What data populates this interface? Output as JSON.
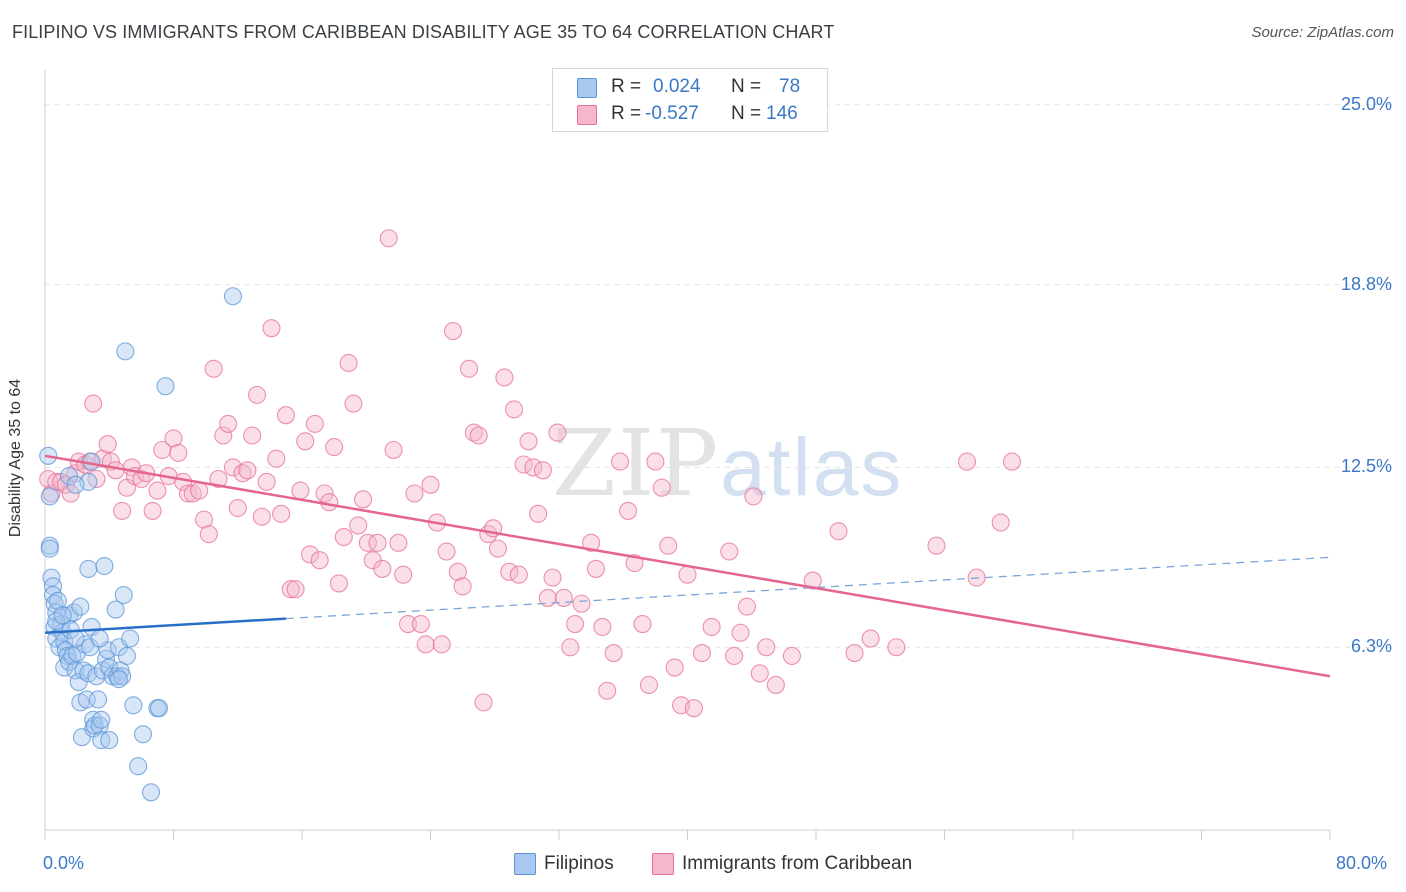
{
  "header": {
    "title": "FILIPINO VS IMMIGRANTS FROM CARIBBEAN DISABILITY AGE 35 TO 64 CORRELATION CHART",
    "source": "Source: ZipAtlas.com"
  },
  "watermark": {
    "zip": "ZIP",
    "atlas": "atlas"
  },
  "legend": {
    "rows": [
      {
        "r_label": "R =",
        "r_value": "0.024",
        "n_label": "N =",
        "n_value": "78",
        "color": "#a8c8f0"
      },
      {
        "r_label": "R =",
        "r_value": "-0.527",
        "n_label": "N =",
        "n_value": "146",
        "color": "#f5b8cb"
      }
    ]
  },
  "bottom_legend": {
    "items": [
      {
        "label": "Filipinos",
        "color": "#a8c8f0"
      },
      {
        "label": "Immigrants from Caribbean",
        "color": "#f5b8cb"
      }
    ]
  },
  "chart_data": {
    "type": "scatter",
    "title": "FILIPINO VS IMMIGRANTS FROM CARIBBEAN DISABILITY AGE 35 TO 64 CORRELATION CHART",
    "xlabel": "",
    "ylabel": "Disability Age 35 to 64",
    "xlim": [
      0,
      80
    ],
    "ylim": [
      0,
      26.2
    ],
    "x_tick_labels": [
      "0.0%",
      "80.0%"
    ],
    "y_ticks": [
      6.3,
      12.5,
      18.8,
      25.0
    ],
    "y_tick_labels": [
      "6.3%",
      "12.5%",
      "18.8%",
      "25.0%"
    ],
    "grid": true,
    "legend_position": "top-center",
    "series": [
      {
        "name": "Filipinos",
        "color": "#5b95d6",
        "fill": "#a8c8f0",
        "r": 0.024,
        "n": 78,
        "trend": {
          "x0": 0,
          "y0": 6.8,
          "x1": 80,
          "y1": 9.4,
          "solid_until": 15
        },
        "points": [
          [
            0.2,
            12.9
          ],
          [
            0.3,
            11.5
          ],
          [
            0.3,
            9.8
          ],
          [
            0.3,
            9.7
          ],
          [
            0.4,
            8.7
          ],
          [
            0.5,
            8.4
          ],
          [
            0.5,
            8.1
          ],
          [
            0.6,
            7.8
          ],
          [
            0.7,
            7.5
          ],
          [
            0.8,
            7.9
          ],
          [
            0.6,
            7.0
          ],
          [
            0.7,
            6.6
          ],
          [
            0.9,
            6.3
          ],
          [
            1.0,
            7.1
          ],
          [
            1.1,
            6.8
          ],
          [
            1.2,
            6.5
          ],
          [
            1.3,
            6.2
          ],
          [
            1.4,
            6.0
          ],
          [
            1.5,
            7.4
          ],
          [
            1.6,
            6.9
          ],
          [
            1.2,
            5.6
          ],
          [
            1.5,
            5.8
          ],
          [
            1.7,
            6.0
          ],
          [
            1.8,
            7.5
          ],
          [
            1.9,
            5.5
          ],
          [
            2.0,
            6.1
          ],
          [
            2.1,
            5.1
          ],
          [
            2.2,
            4.4
          ],
          [
            2.2,
            7.7
          ],
          [
            2.3,
            3.2
          ],
          [
            2.4,
            5.5
          ],
          [
            2.5,
            6.4
          ],
          [
            2.6,
            4.5
          ],
          [
            2.7,
            5.4
          ],
          [
            2.7,
            9.0
          ],
          [
            2.8,
            6.3
          ],
          [
            2.9,
            7.0
          ],
          [
            3.0,
            3.8
          ],
          [
            3.0,
            3.5
          ],
          [
            3.1,
            3.6
          ],
          [
            3.2,
            5.3
          ],
          [
            3.3,
            4.5
          ],
          [
            3.4,
            3.6
          ],
          [
            3.5,
            3.8
          ],
          [
            3.5,
            3.1
          ],
          [
            3.6,
            5.5
          ],
          [
            3.7,
            9.1
          ],
          [
            3.8,
            5.9
          ],
          [
            3.9,
            6.2
          ],
          [
            4.0,
            5.6
          ],
          [
            4.0,
            3.1
          ],
          [
            4.2,
            5.3
          ],
          [
            4.4,
            7.6
          ],
          [
            4.5,
            5.3
          ],
          [
            4.6,
            6.3
          ],
          [
            4.7,
            5.5
          ],
          [
            4.8,
            5.3
          ],
          [
            4.9,
            8.1
          ],
          [
            5.0,
            16.5
          ],
          [
            5.1,
            6.0
          ],
          [
            5.3,
            6.6
          ],
          [
            5.5,
            4.3
          ],
          [
            5.8,
            2.2
          ],
          [
            6.1,
            3.3
          ],
          [
            6.6,
            1.3
          ],
          [
            7.0,
            4.2
          ],
          [
            7.1,
            4.2
          ],
          [
            7.5,
            15.3
          ],
          [
            11.7,
            18.4
          ],
          [
            1.5,
            12.2
          ],
          [
            2.7,
            12.0
          ],
          [
            2.9,
            12.7
          ],
          [
            1.9,
            11.9
          ],
          [
            0.7,
            7.2
          ],
          [
            1.1,
            7.4
          ],
          [
            1.9,
            6.6
          ],
          [
            3.4,
            6.6
          ],
          [
            4.6,
            5.2
          ]
        ]
      },
      {
        "name": "Immigrants from Caribbean",
        "color": "#e86f98",
        "fill": "#f5b8cb",
        "r": -0.527,
        "n": 146,
        "trend": {
          "x0": 0,
          "y0": 12.9,
          "x1": 80,
          "y1": 5.3
        },
        "points": [
          [
            0.2,
            12.1
          ],
          [
            0.4,
            11.6
          ],
          [
            0.7,
            12.0
          ],
          [
            1.0,
            12.0
          ],
          [
            1.3,
            11.9
          ],
          [
            1.6,
            11.6
          ],
          [
            1.9,
            12.3
          ],
          [
            2.1,
            12.7
          ],
          [
            2.5,
            12.6
          ],
          [
            2.8,
            12.7
          ],
          [
            3.0,
            14.7
          ],
          [
            3.2,
            12.1
          ],
          [
            3.6,
            12.8
          ],
          [
            3.9,
            13.3
          ],
          [
            4.1,
            12.7
          ],
          [
            4.4,
            12.4
          ],
          [
            4.8,
            11.0
          ],
          [
            5.1,
            11.8
          ],
          [
            5.4,
            12.5
          ],
          [
            5.6,
            12.2
          ],
          [
            6.0,
            12.1
          ],
          [
            6.3,
            12.3
          ],
          [
            6.7,
            11.0
          ],
          [
            7.0,
            11.7
          ],
          [
            7.3,
            13.1
          ],
          [
            7.7,
            12.2
          ],
          [
            8.0,
            13.5
          ],
          [
            8.3,
            13.0
          ],
          [
            8.6,
            12.0
          ],
          [
            8.9,
            11.6
          ],
          [
            9.2,
            11.6
          ],
          [
            9.6,
            11.7
          ],
          [
            9.9,
            10.7
          ],
          [
            10.2,
            10.2
          ],
          [
            10.5,
            15.9
          ],
          [
            10.8,
            12.1
          ],
          [
            11.1,
            13.6
          ],
          [
            11.4,
            14.0
          ],
          [
            11.7,
            12.5
          ],
          [
            12.0,
            11.1
          ],
          [
            12.3,
            12.3
          ],
          [
            12.6,
            12.4
          ],
          [
            12.9,
            13.6
          ],
          [
            13.2,
            15.0
          ],
          [
            13.5,
            10.8
          ],
          [
            13.8,
            12.0
          ],
          [
            14.1,
            17.3
          ],
          [
            14.4,
            12.8
          ],
          [
            14.7,
            10.9
          ],
          [
            15.0,
            14.3
          ],
          [
            15.3,
            8.3
          ],
          [
            15.6,
            8.3
          ],
          [
            15.9,
            11.7
          ],
          [
            16.2,
            13.4
          ],
          [
            16.5,
            9.5
          ],
          [
            16.8,
            14.0
          ],
          [
            17.1,
            9.3
          ],
          [
            17.4,
            11.6
          ],
          [
            17.7,
            11.3
          ],
          [
            18.0,
            13.2
          ],
          [
            18.3,
            8.5
          ],
          [
            18.6,
            10.1
          ],
          [
            18.9,
            16.1
          ],
          [
            19.2,
            14.7
          ],
          [
            19.5,
            10.5
          ],
          [
            19.8,
            11.4
          ],
          [
            20.1,
            9.9
          ],
          [
            20.4,
            9.3
          ],
          [
            20.7,
            9.9
          ],
          [
            21.0,
            9.0
          ],
          [
            21.4,
            20.4
          ],
          [
            21.7,
            13.1
          ],
          [
            22.0,
            9.9
          ],
          [
            22.3,
            8.8
          ],
          [
            22.6,
            7.1
          ],
          [
            23.0,
            11.6
          ],
          [
            23.4,
            7.1
          ],
          [
            23.7,
            6.4
          ],
          [
            24.0,
            11.9
          ],
          [
            24.4,
            10.6
          ],
          [
            24.7,
            6.4
          ],
          [
            25.0,
            9.6
          ],
          [
            25.4,
            17.2
          ],
          [
            25.7,
            8.9
          ],
          [
            26.0,
            8.4
          ],
          [
            26.4,
            15.9
          ],
          [
            26.7,
            13.7
          ],
          [
            27.0,
            13.6
          ],
          [
            27.3,
            4.4
          ],
          [
            27.6,
            10.2
          ],
          [
            27.9,
            10.4
          ],
          [
            28.2,
            9.7
          ],
          [
            28.6,
            15.6
          ],
          [
            28.9,
            8.9
          ],
          [
            29.2,
            14.5
          ],
          [
            29.5,
            8.8
          ],
          [
            29.8,
            12.6
          ],
          [
            30.1,
            13.4
          ],
          [
            30.4,
            12.5
          ],
          [
            30.7,
            10.9
          ],
          [
            31.0,
            12.4
          ],
          [
            31.3,
            8.0
          ],
          [
            31.6,
            8.7
          ],
          [
            31.9,
            13.7
          ],
          [
            32.3,
            8.0
          ],
          [
            32.7,
            6.3
          ],
          [
            33.0,
            7.1
          ],
          [
            33.4,
            7.8
          ],
          [
            34.0,
            9.9
          ],
          [
            34.3,
            9.0
          ],
          [
            34.7,
            7.0
          ],
          [
            35.0,
            4.8
          ],
          [
            35.4,
            6.1
          ],
          [
            35.8,
            12.7
          ],
          [
            36.3,
            11.0
          ],
          [
            36.7,
            9.2
          ],
          [
            37.2,
            7.1
          ],
          [
            37.6,
            5.0
          ],
          [
            38.0,
            12.7
          ],
          [
            38.4,
            11.8
          ],
          [
            38.8,
            9.8
          ],
          [
            39.2,
            5.6
          ],
          [
            39.6,
            4.3
          ],
          [
            40.0,
            8.8
          ],
          [
            40.4,
            4.2
          ],
          [
            40.9,
            6.1
          ],
          [
            41.5,
            7.0
          ],
          [
            42.6,
            9.6
          ],
          [
            42.9,
            6.0
          ],
          [
            43.3,
            6.8
          ],
          [
            43.7,
            7.7
          ],
          [
            44.1,
            11.5
          ],
          [
            44.5,
            5.4
          ],
          [
            44.9,
            6.3
          ],
          [
            45.5,
            5.0
          ],
          [
            46.5,
            6.0
          ],
          [
            47.8,
            8.6
          ],
          [
            49.4,
            10.3
          ],
          [
            50.4,
            6.1
          ],
          [
            51.4,
            6.6
          ],
          [
            53.0,
            6.3
          ],
          [
            55.5,
            9.8
          ],
          [
            57.4,
            12.7
          ],
          [
            58.0,
            8.7
          ],
          [
            59.5,
            10.6
          ],
          [
            60.2,
            12.7
          ]
        ]
      }
    ]
  }
}
